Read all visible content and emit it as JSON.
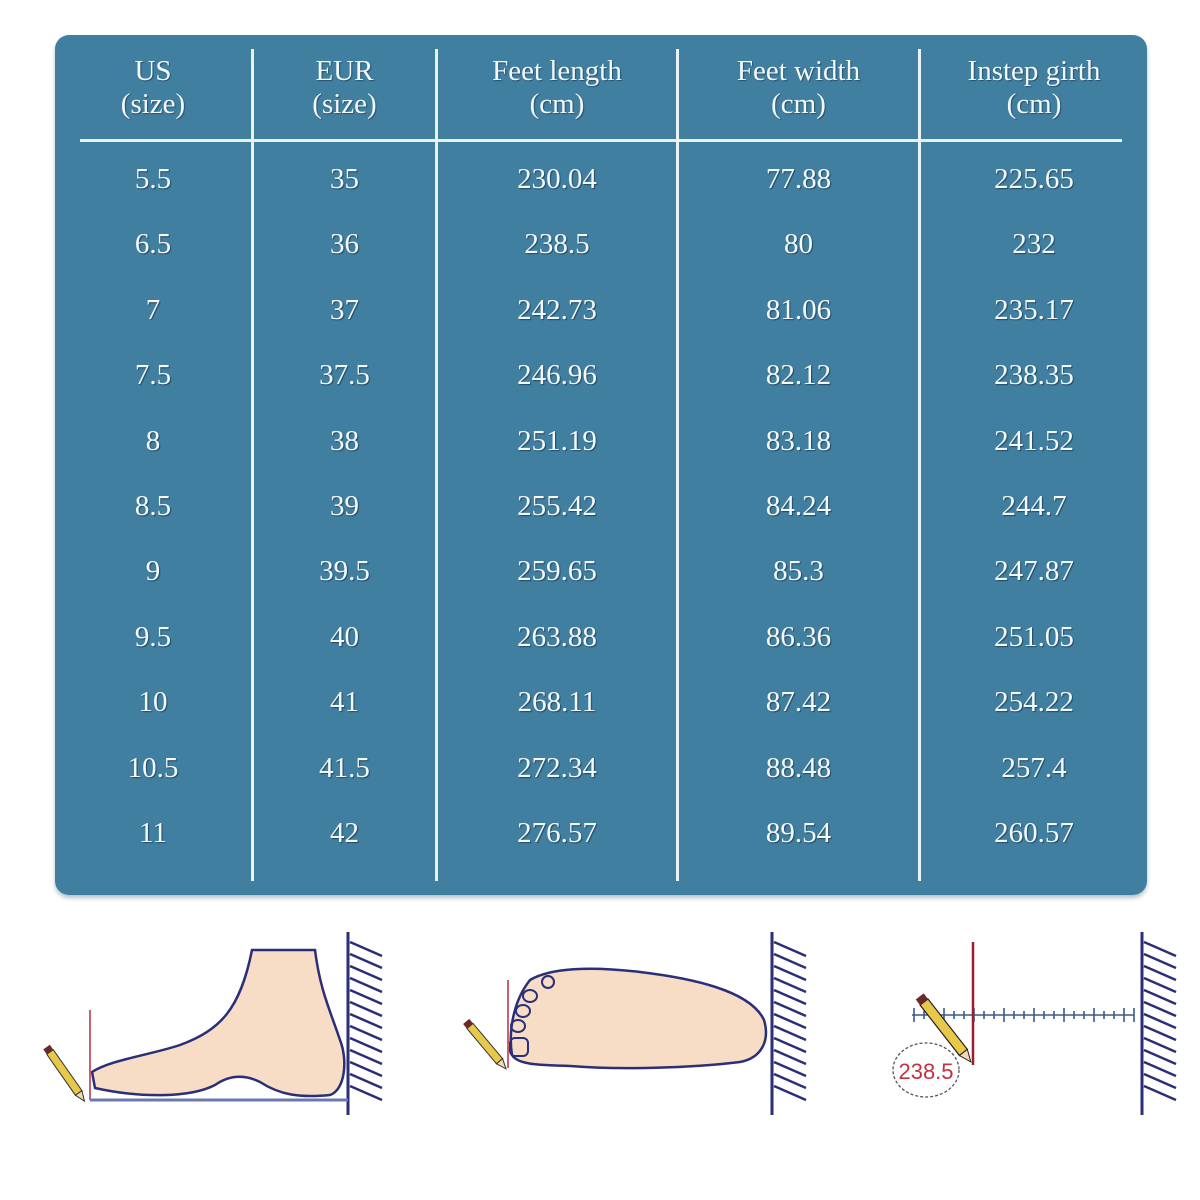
{
  "chart_data": {
    "type": "table",
    "title": "",
    "columns": [
      {
        "key": "us",
        "line1": "US",
        "line2": "(size)"
      },
      {
        "key": "eur",
        "line1": "EUR",
        "line2": "(size)"
      },
      {
        "key": "length",
        "line1": "Feet length",
        "line2": "(cm)"
      },
      {
        "key": "width",
        "line1": "Feet width",
        "line2": "(cm)"
      },
      {
        "key": "girth",
        "line1": "Instep girth",
        "line2": "(cm)"
      }
    ],
    "rows": [
      [
        "5.5",
        "35",
        "230.04",
        "77.88",
        "225.65"
      ],
      [
        "6.5",
        "36",
        "238.5",
        "80",
        "232"
      ],
      [
        "7",
        "37",
        "242.73",
        "81.06",
        "235.17"
      ],
      [
        "7.5",
        "37.5",
        "246.96",
        "82.12",
        "238.35"
      ],
      [
        "8",
        "38",
        "251.19",
        "83.18",
        "241.52"
      ],
      [
        "8.5",
        "39",
        "255.42",
        "84.24",
        "244.7"
      ],
      [
        "9",
        "39.5",
        "259.65",
        "85.3",
        "247.87"
      ],
      [
        "9.5",
        "40",
        "263.88",
        "86.36",
        "251.05"
      ],
      [
        "10",
        "41",
        "268.11",
        "87.42",
        "254.22"
      ],
      [
        "10.5",
        "41.5",
        "272.34",
        "88.48",
        "257.4"
      ],
      [
        "11",
        "42",
        "276.57",
        "89.54",
        "260.57"
      ]
    ]
  },
  "colors": {
    "table_bg": "#417fa0",
    "line": "#e9f2f7",
    "text": "#f5f9fc",
    "skin": "#f7dcc6",
    "outline": "#2a2f78",
    "red_line": "#b83a4a",
    "pencil": "#e8c84a"
  },
  "diagrams": {
    "measurement_label": "238.5"
  }
}
